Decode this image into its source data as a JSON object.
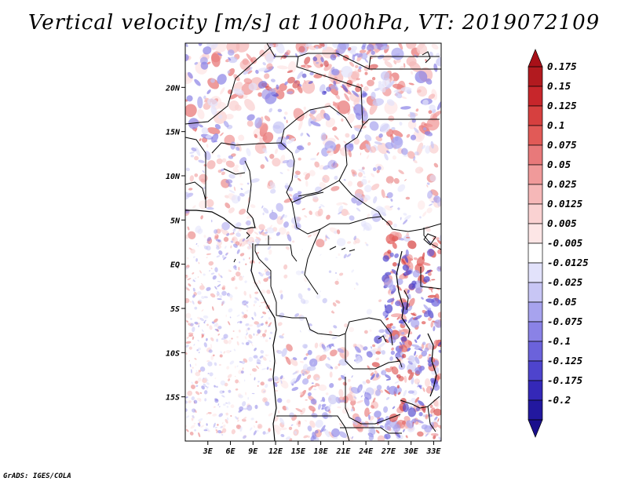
{
  "title": "Vertical velocity [m/s] at 1000hPa, VT: 2019072109",
  "credit": "GrADS: IGES/COLA",
  "map": {
    "lon_range": [
      0,
      34
    ],
    "lat_range": [
      -20,
      25
    ],
    "lon_ticks": [
      {
        "value": 3,
        "label": "3E"
      },
      {
        "value": 6,
        "label": "6E"
      },
      {
        "value": 9,
        "label": "9E"
      },
      {
        "value": 12,
        "label": "12E"
      },
      {
        "value": 15,
        "label": "15E"
      },
      {
        "value": 18,
        "label": "18E"
      },
      {
        "value": 21,
        "label": "21E"
      },
      {
        "value": 24,
        "label": "24E"
      },
      {
        "value": 27,
        "label": "27E"
      },
      {
        "value": 30,
        "label": "30E"
      },
      {
        "value": 33,
        "label": "33E"
      }
    ],
    "lat_ticks": [
      {
        "value": 20,
        "label": "20N"
      },
      {
        "value": 15,
        "label": "15N"
      },
      {
        "value": 10,
        "label": "10N"
      },
      {
        "value": 5,
        "label": "5N"
      },
      {
        "value": 0,
        "label": "EQ"
      },
      {
        "value": -5,
        "label": "5S"
      },
      {
        "value": -10,
        "label": "10S"
      },
      {
        "value": -15,
        "label": "15S"
      }
    ]
  },
  "colorbar": {
    "max_arrow_color": "#a81018",
    "min_arrow_color": "#1a0f8c",
    "levels": [
      {
        "label": "0.175",
        "color": "#b21a1f"
      },
      {
        "label": "0.15",
        "color": "#c7262b"
      },
      {
        "label": "0.125",
        "color": "#d6403f"
      },
      {
        "label": "0.1",
        "color": "#e15a57"
      },
      {
        "label": "0.075",
        "color": "#e8797a"
      },
      {
        "label": "0.05",
        "color": "#f09a9a"
      },
      {
        "label": "0.025",
        "color": "#f6b8b8"
      },
      {
        "label": "0.0125",
        "color": "#fad2d2"
      },
      {
        "label": "0.005",
        "color": "#fde6e6"
      },
      {
        "label": "-0.005",
        "color": "#ffffff"
      },
      {
        "label": "-0.0125",
        "color": "#e2e2fb"
      },
      {
        "label": "-0.025",
        "color": "#c8c6f5"
      },
      {
        "label": "-0.05",
        "color": "#a7a3ee"
      },
      {
        "label": "-0.075",
        "color": "#8a82e6"
      },
      {
        "label": "-0.1",
        "color": "#6b62db"
      },
      {
        "label": "-0.125",
        "color": "#4e44cd"
      },
      {
        "label": "-0.175",
        "color": "#3428b8"
      },
      {
        "label": "-0.2",
        "color": "#22189f"
      }
    ]
  }
}
